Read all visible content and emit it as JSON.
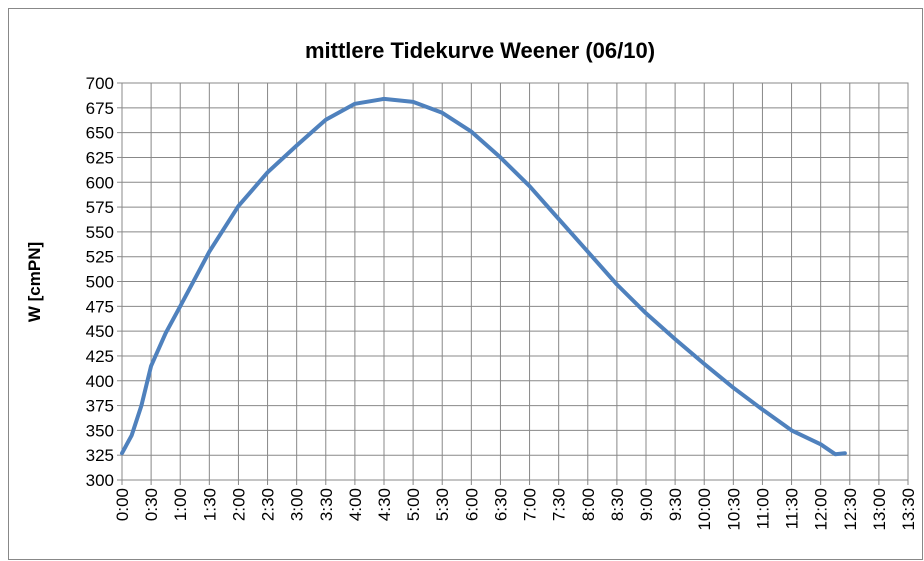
{
  "chart_data": {
    "type": "line",
    "title": "mittlere Tidekurve Weener (06/10)",
    "y_label": "W [cmPN]",
    "x": [
      0,
      10,
      20,
      30,
      45,
      60,
      90,
      120,
      150,
      180,
      210,
      240,
      270,
      300,
      330,
      360,
      390,
      420,
      450,
      480,
      510,
      540,
      570,
      600,
      630,
      660,
      690,
      720,
      735,
      745
    ],
    "values": [
      327,
      345,
      375,
      415,
      448,
      475,
      530,
      576,
      610,
      637,
      663,
      679,
      684,
      681,
      670,
      651,
      625,
      596,
      563,
      530,
      497,
      468,
      442,
      417,
      393,
      371,
      350,
      336,
      326,
      327
    ],
    "color": "#4f81bd",
    "xlim": [
      0,
      810
    ],
    "xticks": [
      {
        "value": 0,
        "label": "0:00"
      },
      {
        "value": 30,
        "label": "0:30"
      },
      {
        "value": 60,
        "label": "1:00"
      },
      {
        "value": 90,
        "label": "1:30"
      },
      {
        "value": 120,
        "label": "2:00"
      },
      {
        "value": 150,
        "label": "2:30"
      },
      {
        "value": 180,
        "label": "3:00"
      },
      {
        "value": 210,
        "label": "3:30"
      },
      {
        "value": 240,
        "label": "4:00"
      },
      {
        "value": 270,
        "label": "4:30"
      },
      {
        "value": 300,
        "label": "5:00"
      },
      {
        "value": 330,
        "label": "5:30"
      },
      {
        "value": 360,
        "label": "6:00"
      },
      {
        "value": 390,
        "label": "6:30"
      },
      {
        "value": 420,
        "label": "7:00"
      },
      {
        "value": 450,
        "label": "7:30"
      },
      {
        "value": 480,
        "label": "8:00"
      },
      {
        "value": 510,
        "label": "8:30"
      },
      {
        "value": 540,
        "label": "9:00"
      },
      {
        "value": 570,
        "label": "9:30"
      },
      {
        "value": 600,
        "label": "10:00"
      },
      {
        "value": 630,
        "label": "10:30"
      },
      {
        "value": 660,
        "label": "11:00"
      },
      {
        "value": 690,
        "label": "11:30"
      },
      {
        "value": 720,
        "label": "12:00"
      },
      {
        "value": 750,
        "label": "12:30"
      },
      {
        "value": 780,
        "label": "13:00"
      },
      {
        "value": 810,
        "label": "13:30"
      }
    ],
    "ylim": [
      300,
      700
    ],
    "yticks": [
      300,
      325,
      350,
      375,
      400,
      425,
      450,
      475,
      500,
      525,
      550,
      575,
      600,
      625,
      650,
      675,
      700
    ],
    "grid": true
  }
}
